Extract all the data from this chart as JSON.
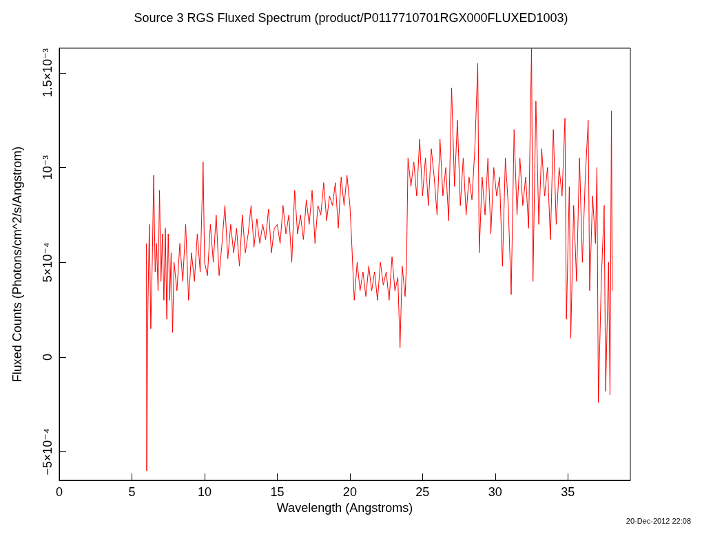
{
  "chart_data": {
    "type": "line",
    "title": "Source 3 RGS Fluxed Spectrum (product/P0117710701RGX000FLUXED1003)",
    "xlabel": "Wavelength (Angstroms)",
    "ylabel": "Fluxed Counts (Photons/cm^2/s/Angstrom)",
    "annotations": [
      "20-Dec-2012 22:08"
    ],
    "xlim": [
      0,
      39.3
    ],
    "xticks": [
      0,
      5,
      10,
      15,
      20,
      25,
      30,
      35
    ],
    "ylim": [
      -0.00065,
      0.00163
    ],
    "yticks": [
      {
        "value": -0.0005,
        "label": "−5×10⁻⁴"
      },
      0,
      {
        "value": 0.0005,
        "label": "5×10⁻⁴"
      },
      {
        "value": 0.001,
        "label": "10⁻³"
      },
      {
        "value": 0.0015,
        "label": "1.5×10⁻³"
      }
    ],
    "marker": "none",
    "line_style": "solid",
    "series": [
      {
        "color": "#ff0000",
        "x": [
          6.0,
          6.02,
          6.1,
          6.2,
          6.3,
          6.4,
          6.5,
          6.6,
          6.7,
          6.8,
          6.9,
          7.0,
          7.1,
          7.2,
          7.3,
          7.4,
          7.5,
          7.6,
          7.7,
          7.8,
          7.9,
          8.1,
          8.3,
          8.5,
          8.7,
          8.9,
          9.1,
          9.3,
          9.5,
          9.7,
          9.9,
          10.0,
          10.2,
          10.4,
          10.6,
          10.8,
          11.0,
          11.2,
          11.4,
          11.6,
          11.8,
          12.0,
          12.2,
          12.4,
          12.6,
          12.8,
          13.0,
          13.2,
          13.4,
          13.6,
          13.8,
          14.0,
          14.2,
          14.4,
          14.6,
          14.8,
          15.0,
          15.2,
          15.4,
          15.6,
          15.8,
          16.0,
          16.2,
          16.4,
          16.6,
          16.8,
          17.0,
          17.2,
          17.4,
          17.6,
          17.8,
          18.0,
          18.2,
          18.4,
          18.6,
          18.8,
          19.0,
          19.2,
          19.4,
          19.6,
          19.8,
          20.0,
          20.1,
          20.3,
          20.5,
          20.7,
          20.9,
          21.1,
          21.3,
          21.5,
          21.7,
          21.9,
          22.1,
          22.3,
          22.5,
          22.7,
          22.9,
          23.1,
          23.3,
          23.45,
          23.6,
          23.8,
          23.9,
          24.0,
          24.2,
          24.4,
          24.6,
          24.8,
          25.0,
          25.2,
          25.4,
          25.6,
          25.8,
          26.0,
          26.2,
          26.4,
          26.6,
          26.8,
          27.0,
          27.2,
          27.4,
          27.6,
          27.8,
          28.0,
          28.2,
          28.4,
          28.6,
          28.8,
          28.9,
          29.1,
          29.3,
          29.5,
          29.7,
          29.9,
          30.1,
          30.3,
          30.5,
          30.7,
          30.9,
          31.1,
          31.3,
          31.5,
          31.7,
          31.9,
          32.1,
          32.3,
          32.5,
          32.6,
          32.8,
          33.0,
          33.2,
          33.4,
          33.6,
          33.8,
          34.0,
          34.2,
          34.4,
          34.6,
          34.8,
          34.9,
          35.1,
          35.2,
          35.4,
          35.6,
          35.8,
          36.0,
          36.2,
          36.4,
          36.5,
          36.7,
          36.9,
          37.0,
          37.1,
          37.3,
          37.5,
          37.6,
          37.8,
          37.9,
          38.0,
          38.05
        ],
        "values": [
          0.0006,
          -0.0006,
          0.00025,
          0.0007,
          0.00015,
          0.0005,
          0.00096,
          0.00045,
          0.0006,
          0.00035,
          0.00088,
          0.0004,
          0.00065,
          0.0003,
          0.00068,
          0.0002,
          0.00065,
          0.0003,
          0.00055,
          0.00013,
          0.0005,
          0.00035,
          0.0006,
          0.0004,
          0.0007,
          0.0003,
          0.00055,
          0.0004,
          0.00065,
          0.00045,
          0.00103,
          0.0005,
          0.00043,
          0.0007,
          0.0005,
          0.00075,
          0.00043,
          0.0006,
          0.0008,
          0.00052,
          0.0007,
          0.00055,
          0.00068,
          0.00048,
          0.00075,
          0.00055,
          0.00065,
          0.0008,
          0.00058,
          0.00073,
          0.0006,
          0.0007,
          0.00062,
          0.00078,
          0.00055,
          0.00068,
          0.0007,
          0.0006,
          0.0008,
          0.00065,
          0.00075,
          0.0005,
          0.00088,
          0.00065,
          0.00075,
          0.00062,
          0.00083,
          0.0007,
          0.00088,
          0.0006,
          0.0008,
          0.00075,
          0.00092,
          0.00072,
          0.00085,
          0.0008,
          0.00092,
          0.00068,
          0.00095,
          0.0008,
          0.00096,
          0.0008,
          0.00065,
          0.0003,
          0.0005,
          0.00035,
          0.00045,
          0.00032,
          0.00048,
          0.00035,
          0.00045,
          0.0003,
          0.0005,
          0.00038,
          0.00045,
          0.0003,
          0.00053,
          0.00035,
          0.00042,
          5e-05,
          0.00048,
          0.00032,
          0.0005,
          0.00105,
          0.0009,
          0.00103,
          0.00085,
          0.00115,
          0.00085,
          0.00105,
          0.0008,
          0.0011,
          0.00095,
          0.00075,
          0.00115,
          0.00085,
          0.001,
          0.00072,
          0.00142,
          0.0009,
          0.00125,
          0.0008,
          0.00105,
          0.00075,
          0.00095,
          0.00083,
          0.0011,
          0.00155,
          0.00055,
          0.00095,
          0.00075,
          0.00105,
          0.00065,
          0.001,
          0.00085,
          0.00095,
          0.00048,
          0.00105,
          0.0008,
          0.00033,
          0.0012,
          0.00075,
          0.00105,
          0.0008,
          0.00095,
          0.00068,
          0.00163,
          0.0004,
          0.00135,
          0.0007,
          0.0011,
          0.00085,
          0.001,
          0.00062,
          0.0012,
          0.0007,
          0.001,
          0.00085,
          0.00126,
          0.0002,
          0.0009,
          0.0001,
          0.0008,
          0.0004,
          0.00105,
          0.0005,
          0.00095,
          0.00125,
          0.00035,
          0.00085,
          0.0006,
          0.001,
          -0.00024,
          0.0004,
          0.0008,
          -0.00018,
          0.0005,
          -0.0002,
          0.0013,
          0.00035
        ]
      }
    ]
  }
}
